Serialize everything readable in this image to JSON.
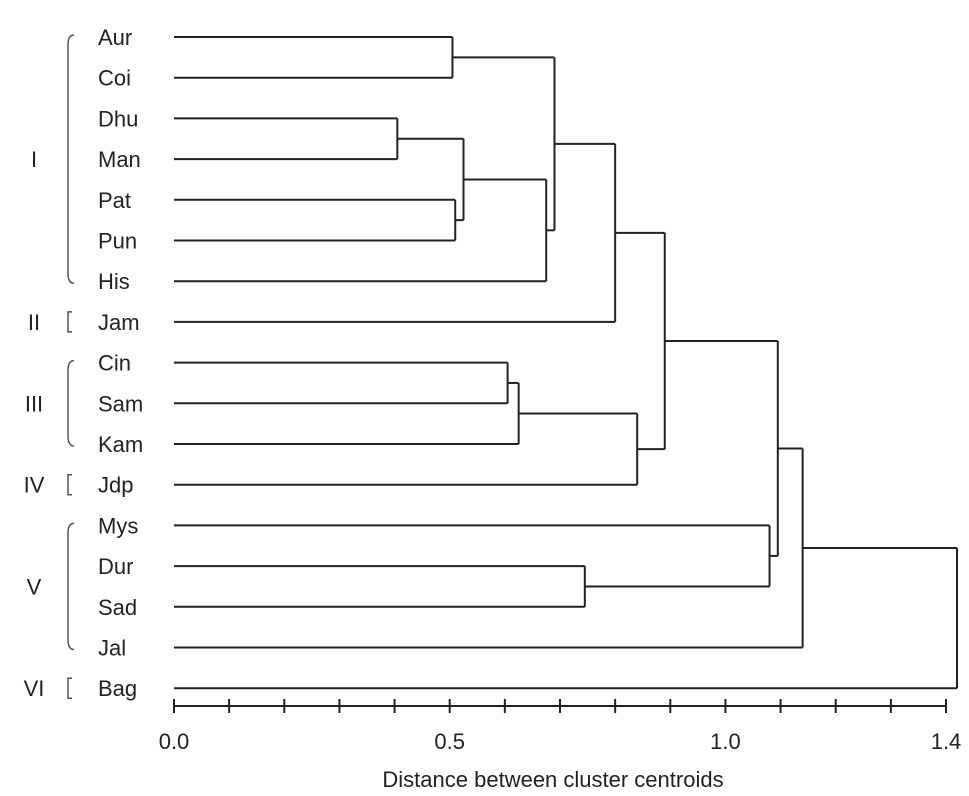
{
  "chart_data": {
    "type": "dendrogram",
    "xlabel": "Distance between cluster centroids",
    "x_ticks": [
      "0.0",
      "0.5",
      "1.0",
      "1.4"
    ],
    "x_tick_values": [
      0.0,
      0.5,
      1.0,
      1.4
    ],
    "xlim": [
      0.0,
      1.4
    ],
    "minor_tick_step": 0.1,
    "leaves": [
      "Aur",
      "Coi",
      "Dhu",
      "Man",
      "Pat",
      "Pun",
      "His",
      "Jam",
      "Cin",
      "Sam",
      "Kam",
      "Jdp",
      "Mys",
      "Dur",
      "Sad",
      "Jal",
      "Bag"
    ],
    "groups": [
      {
        "label": "I",
        "first": 0,
        "last": 6
      },
      {
        "label": "II",
        "first": 7,
        "last": 7
      },
      {
        "label": "III",
        "first": 8,
        "last": 10
      },
      {
        "label": "IV",
        "first": 11,
        "last": 11
      },
      {
        "label": "V",
        "first": 12,
        "last": 15
      },
      {
        "label": "VI",
        "first": 16,
        "last": 16
      }
    ],
    "merges": [
      {
        "id": "m1",
        "a": "Dhu",
        "b": "Man",
        "height": 0.405
      },
      {
        "id": "m2",
        "a": "Aur",
        "b": "Coi",
        "height": 0.505
      },
      {
        "id": "m3",
        "a": "Pat",
        "b": "Pun",
        "height": 0.51
      },
      {
        "id": "m4",
        "a": "m3",
        "b": "m1",
        "height": 0.525
      },
      {
        "id": "m5",
        "a": "Cin",
        "b": "Sam",
        "height": 0.605
      },
      {
        "id": "m6",
        "a": "m5",
        "b": "Kam",
        "height": 0.625
      },
      {
        "id": "m7",
        "a": "m4",
        "b": "His",
        "height": 0.675
      },
      {
        "id": "m8",
        "a": "Dur",
        "b": "Sad",
        "height": 0.745
      },
      {
        "id": "m9",
        "a": "m2",
        "b": "m7",
        "height": 0.69
      },
      {
        "id": "m10",
        "a": "m9",
        "b": "Jam",
        "height": 0.8
      },
      {
        "id": "m11",
        "a": "m6",
        "b": "Jdp",
        "height": 0.84
      },
      {
        "id": "m12",
        "a": "m10",
        "b": "m11",
        "height": 0.89
      },
      {
        "id": "m13",
        "a": "m8",
        "b": "Mys",
        "height": 1.08
      },
      {
        "id": "m14",
        "a": "m12",
        "b": "m13",
        "height": 1.095
      },
      {
        "id": "m15",
        "a": "m14",
        "b": "Jal",
        "height": 1.14
      },
      {
        "id": "m16",
        "a": "m15",
        "b": "Bag",
        "height": 1.42
      }
    ]
  }
}
